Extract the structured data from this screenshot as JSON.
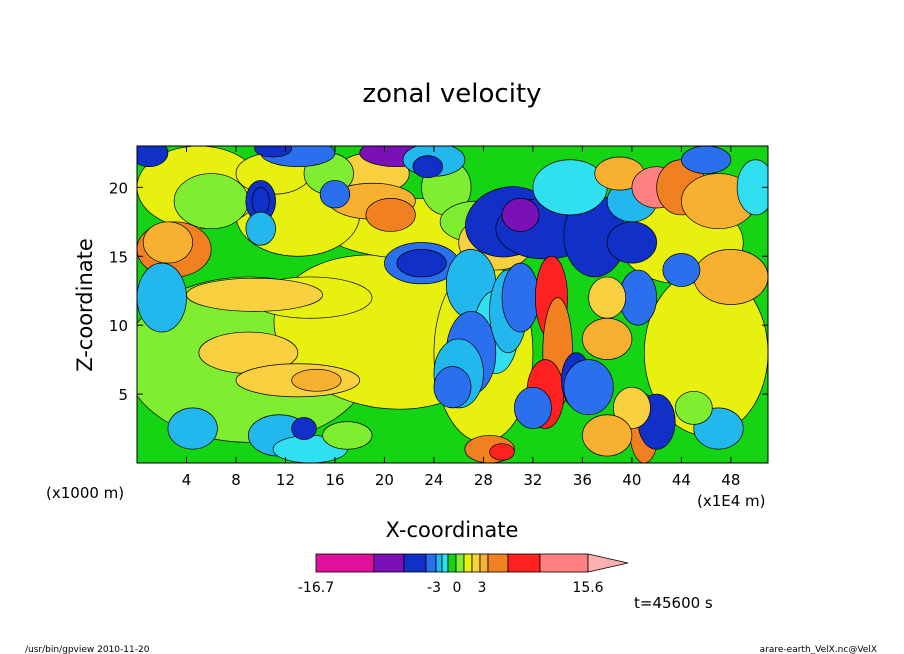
{
  "app": {
    "footer_left": "/usr/bin/gpview  2010-11-20",
    "footer_right": "arare-earth_VelX.nc@VelX"
  },
  "chart_data": {
    "type": "heatmap",
    "title": "zonal velocity",
    "xlabel": "X-coordinate",
    "ylabel": "Z-coordinate",
    "xunit_label": "(x1E4 m)",
    "yunit_label": "(x1000 m)",
    "xlim": [
      0,
      51
    ],
    "ylim": [
      0,
      23
    ],
    "xticks": [
      4,
      8,
      12,
      16,
      20,
      24,
      28,
      32,
      36,
      40,
      44,
      48
    ],
    "yticks": [
      5,
      10,
      15,
      20
    ],
    "time_label": "t=45600 s",
    "colorbar": {
      "min_label": "-16.7",
      "max_label": "15.6",
      "tick_labels": [
        "-3",
        "0",
        "3"
      ],
      "colors": [
        "#e0109b",
        "#7a10b8",
        "#1030c8",
        "#2a70ee",
        "#22b8ee",
        "#30e0f0",
        "#14d414",
        "#80ee30",
        "#e8f010",
        "#f8d040",
        "#f8b030",
        "#f08020",
        "#ff2020",
        "#ff8080",
        "#ffb0b0"
      ]
    }
  }
}
